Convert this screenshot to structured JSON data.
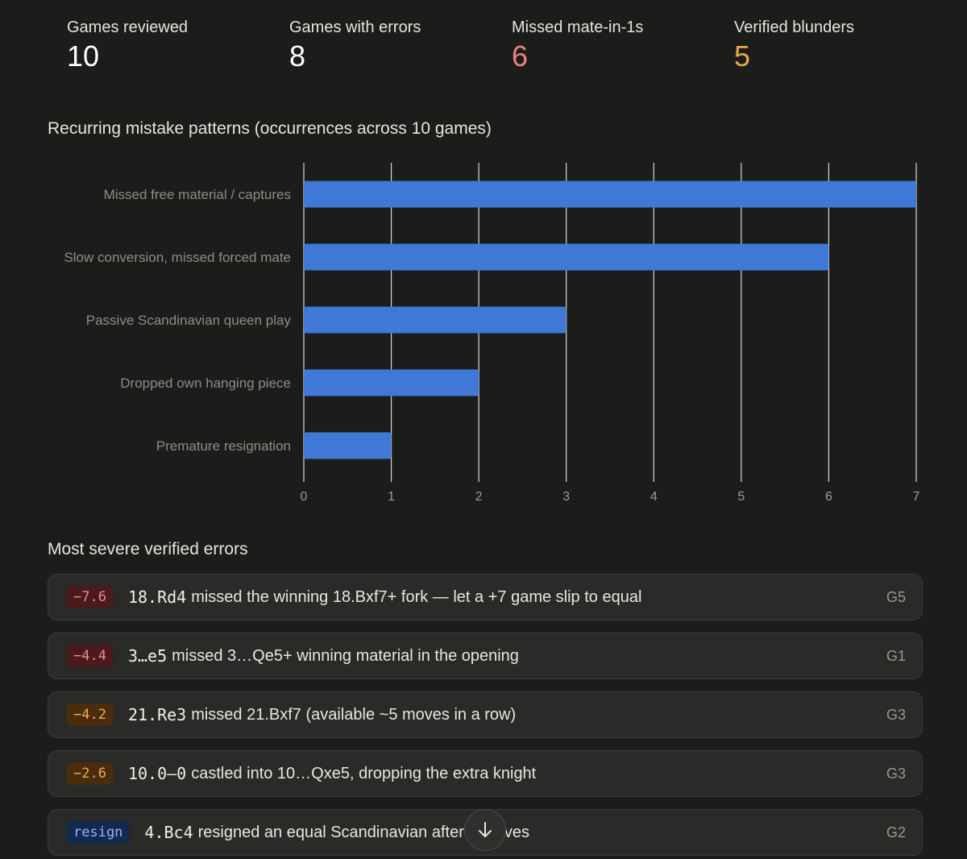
{
  "stats": [
    {
      "label": "Games reviewed",
      "value": "10",
      "color": "#ffffff"
    },
    {
      "label": "Games with errors",
      "value": "8",
      "color": "#ffffff"
    },
    {
      "label": "Missed mate-in-1s",
      "value": "6",
      "color": "#e8847e"
    },
    {
      "label": "Verified blunders",
      "value": "5",
      "color": "#e6a84c"
    }
  ],
  "patterns_title": "Recurring mistake patterns (occurrences across 10 games)",
  "chart_data": {
    "type": "bar",
    "orientation": "horizontal",
    "categories": [
      "Missed free material / captures",
      "Slow conversion, missed forced mate",
      "Passive Scandinavian queen play",
      "Dropped own hanging piece",
      "Premature resignation"
    ],
    "values": [
      7,
      6,
      3,
      2,
      1
    ],
    "xlim": [
      0,
      7
    ],
    "xticks": [
      "0",
      "1",
      "2",
      "3",
      "4",
      "5",
      "6",
      "7"
    ],
    "grid": true,
    "bar_color": "#3f78d6"
  },
  "errors_title": "Most severe verified errors",
  "errors": [
    {
      "badge": "−7.6",
      "badge_style": "red",
      "move": "18.Rd4",
      "desc": "missed the winning 18.Bxf7+ fork — let a +7 game slip to equal",
      "game": "G5"
    },
    {
      "badge": "−4.4",
      "badge_style": "red",
      "move": "3…e5",
      "desc": "missed 3…Qe5+ winning material in the opening",
      "game": "G1"
    },
    {
      "badge": "−4.2",
      "badge_style": "orange",
      "move": "21.Re3",
      "desc": "missed 21.Bxf7 (available ~5 moves in a row)",
      "game": "G3"
    },
    {
      "badge": "−2.6",
      "badge_style": "orange",
      "move": "10.0–0",
      "desc": "castled into 10…Qxe5, dropping the extra knight",
      "game": "G3"
    },
    {
      "badge": "resign",
      "badge_style": "blue",
      "move": "4.Bc4",
      "desc": "resigned an equal Scandinavian after 4 moves",
      "game": "G2"
    }
  ],
  "scroll_button": {
    "icon": "arrow-down-icon"
  }
}
